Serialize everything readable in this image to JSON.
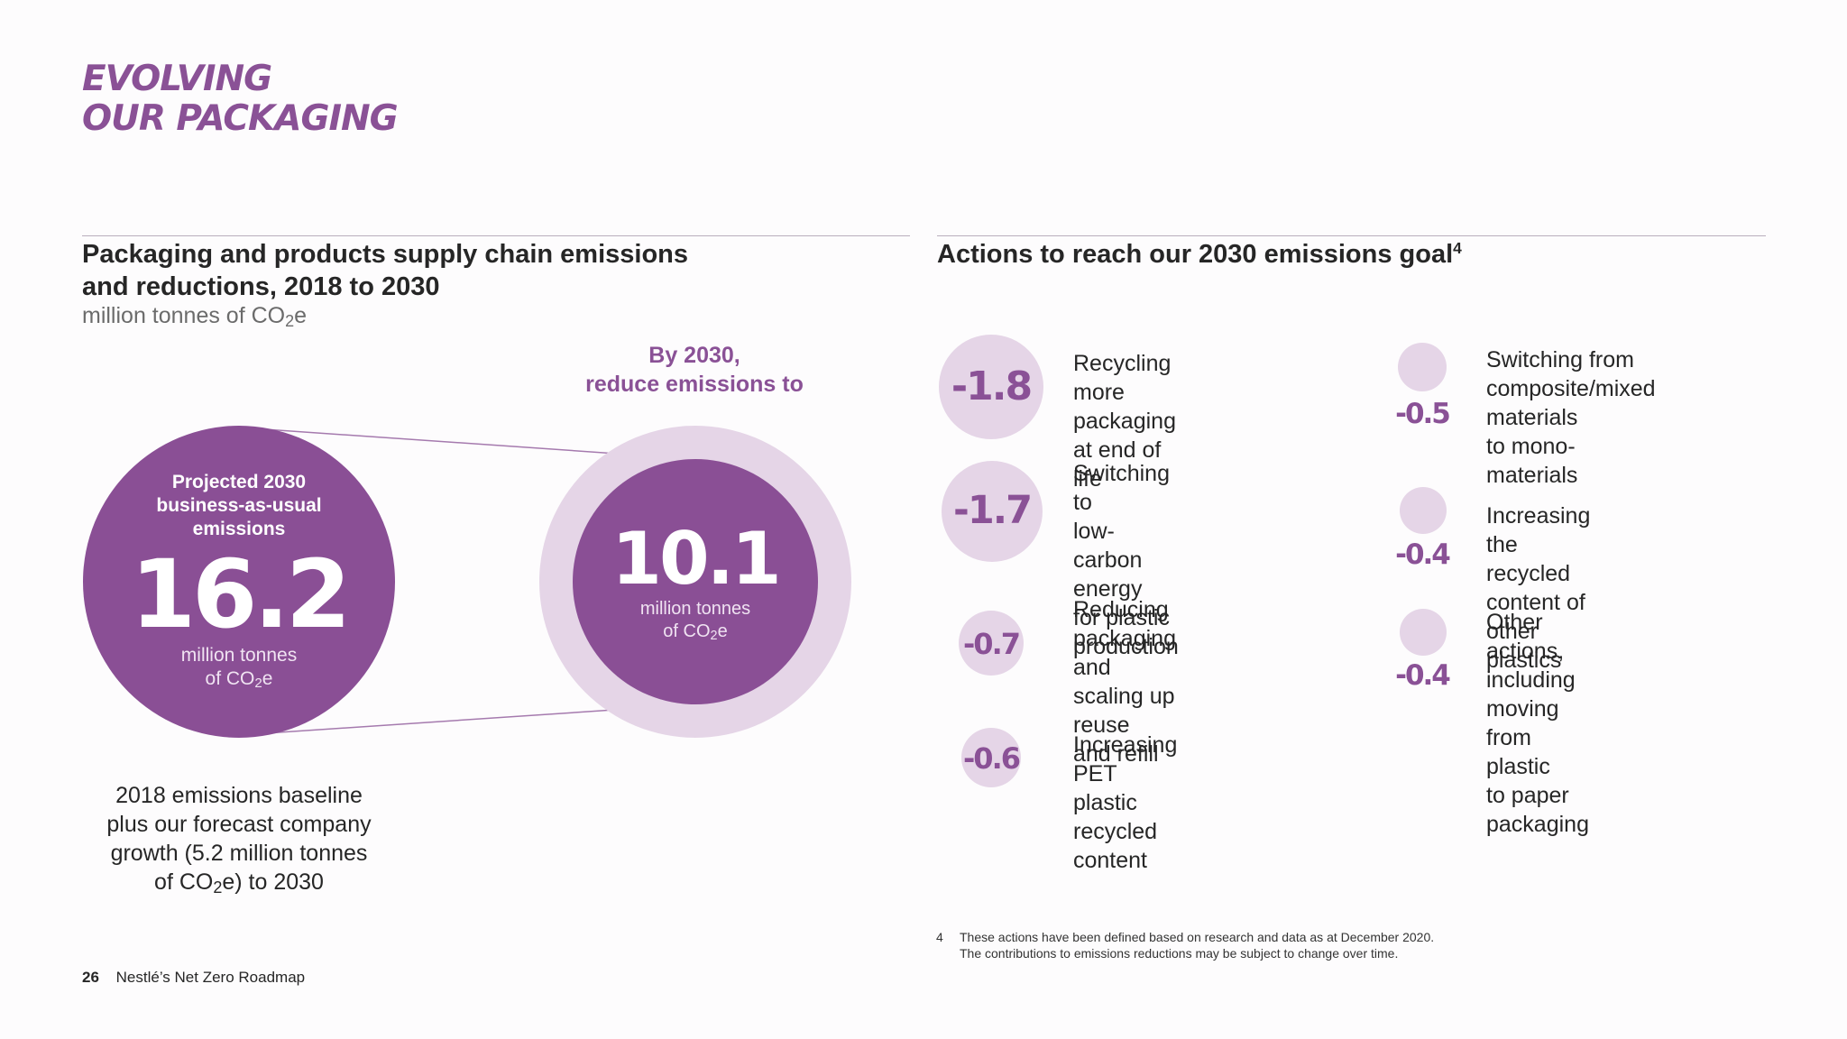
{
  "hero_title": [
    "EVOLVING",
    "OUR PACKAGING"
  ],
  "left_section": {
    "title_lines": [
      "Packaging and products supply chain emissions",
      "and reductions, 2018 to 2030"
    ],
    "unit_prefix": "million tonnes of CO",
    "unit_sub": "2",
    "unit_suffix": "e"
  },
  "target_heading": [
    "By 2030,",
    "reduce emissions to"
  ],
  "projected": {
    "label_lines": [
      "Projected 2030",
      "business-as-usual",
      "emissions"
    ],
    "value": "16.2",
    "unit_line1": "million tonnes",
    "unit_line2_prefix": "of CO",
    "unit_line2_sub": "2",
    "unit_line2_suffix": "e"
  },
  "target": {
    "value": "10.1",
    "unit_line1": "million tonnes",
    "unit_line2_prefix": "of CO",
    "unit_line2_sub": "2",
    "unit_line2_suffix": "e"
  },
  "baseline_note": {
    "lines": [
      "2018 emissions baseline",
      "plus our forecast company",
      "growth (5.2 million tonnes"
    ],
    "last_prefix": "of CO",
    "last_sub": "2",
    "last_suffix": "e) to 2030"
  },
  "right_section": {
    "title": "Actions to reach our 2030 emissions goal",
    "footnote_ref": "4"
  },
  "actions_left": [
    {
      "value": "-1.8",
      "lines": [
        "Recycling more",
        "packaging at end of life"
      ]
    },
    {
      "value": "-1.7",
      "lines": [
        "Switching to",
        "low-carbon energy",
        "for plastic production"
      ]
    },
    {
      "value": "-0.7",
      "lines": [
        "Reducing packaging",
        "and scaling up reuse",
        "and refill"
      ]
    },
    {
      "value": "-0.6",
      "lines": [
        "Increasing PET plastic",
        "recycled content"
      ]
    }
  ],
  "actions_right": [
    {
      "value": "-0.5",
      "lines": [
        "Switching from",
        "composite/mixed materials",
        "to mono-materials"
      ]
    },
    {
      "value": "-0.4",
      "lines": [
        "Increasing the recycled",
        "content of other plastics"
      ]
    },
    {
      "value": "-0.4",
      "lines": [
        "Other actions, including",
        "moving from plastic",
        "to paper packaging"
      ]
    }
  ],
  "footnote": {
    "number": "4",
    "lines": [
      "These actions have been defined based on research and data as at December 2020.",
      "The contributions to emissions reductions may be subject to change over time."
    ]
  },
  "footer": {
    "page_number": "26",
    "publication": "Nestlé’s Net Zero Roadmap"
  },
  "colors": {
    "accent_purple": "#8a4f95",
    "light_lilac": "#e5d5e7",
    "rule": "#b9aebd"
  }
}
